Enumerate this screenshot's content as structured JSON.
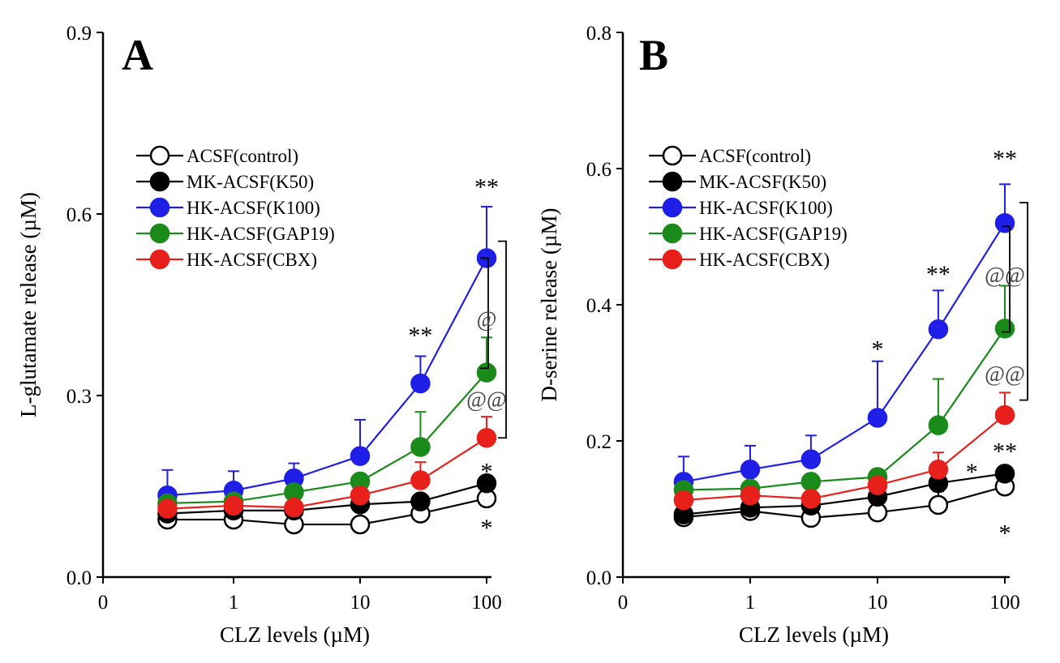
{
  "chart_data": [
    {
      "type": "line",
      "panel": "A",
      "xlabel": "CLZ levels (µM)",
      "ylabel": "L-glutamate release (µM)",
      "x_scale": "log",
      "x_tick_labels": [
        "0",
        "1",
        "10",
        "100"
      ],
      "x": [
        0.3,
        1,
        3,
        10,
        30,
        100
      ],
      "ylim": [
        0,
        0.9
      ],
      "y_ticks": [
        0.0,
        0.3,
        0.6,
        0.9
      ],
      "y_tick_labels": [
        "0.0",
        "0.3",
        "0.6",
        "0.9"
      ],
      "legend": "upper-left",
      "series": [
        {
          "name": "ACSF(control)",
          "color": "#000000",
          "fill": "#ffffff",
          "values": [
            0.095,
            0.095,
            0.087,
            0.087,
            0.105,
            0.13
          ],
          "errors": [
            0.01,
            0.01,
            0.03,
            0.01,
            0.015,
            0.015
          ]
        },
        {
          "name": "MK-ACSF(K50)",
          "color": "#000000",
          "fill": "#000000",
          "values": [
            0.105,
            0.11,
            0.11,
            0.12,
            0.125,
            0.155
          ],
          "errors": [
            0.01,
            0.01,
            0.01,
            0.01,
            0.01,
            0.01
          ]
        },
        {
          "name": "HK-ACSF(K100)",
          "color": "#1f1fe8",
          "fill": "#1f1fe8",
          "values": [
            0.135,
            0.143,
            0.163,
            0.2,
            0.32,
            0.527
          ],
          "errors": [
            0.042,
            0.032,
            0.025,
            0.06,
            0.045,
            0.085
          ]
        },
        {
          "name": "HK-ACSF(GAP19)",
          "color": "#1a8a1a",
          "fill": "#1a8a1a",
          "values": [
            0.122,
            0.125,
            0.14,
            0.158,
            0.215,
            0.338
          ],
          "errors": [
            0.01,
            0.01,
            0.012,
            0.012,
            0.058,
            0.058
          ]
        },
        {
          "name": "HK-ACSF(CBX)",
          "color": "#e8201c",
          "fill": "#e8201c",
          "values": [
            0.113,
            0.118,
            0.115,
            0.135,
            0.16,
            0.23
          ],
          "errors": [
            0.01,
            0.01,
            0.01,
            0.012,
            0.03,
            0.035
          ]
        }
      ],
      "annotations": [
        {
          "text": "**",
          "x": 100,
          "y": 0.645,
          "kind": "star"
        },
        {
          "text": "**",
          "x": 30,
          "y": 0.4,
          "kind": "star"
        },
        {
          "text": "*",
          "x": 100,
          "y": 0.175,
          "kind": "star"
        },
        {
          "text": "*",
          "x": 100,
          "y": 0.082,
          "kind": "star"
        },
        {
          "text": "@",
          "x": 100,
          "y": 0.428,
          "kind": "at"
        },
        {
          "text": "@@",
          "x": 100,
          "y": 0.295,
          "kind": "at"
        }
      ],
      "brackets": [
        [
          0.555,
          0.23
        ],
        [
          0.527,
          0.345
        ]
      ]
    },
    {
      "type": "line",
      "panel": "B",
      "xlabel": "CLZ levels (µM)",
      "ylabel": "D-serine release (µM)",
      "x_scale": "log",
      "x_tick_labels": [
        "0",
        "1",
        "10",
        "100"
      ],
      "x": [
        0.3,
        1,
        3,
        10,
        30,
        100
      ],
      "ylim": [
        0,
        0.8
      ],
      "y_ticks": [
        0.0,
        0.2,
        0.4,
        0.6,
        0.8
      ],
      "y_tick_labels": [
        "0.0",
        "0.2",
        "0.4",
        "0.6",
        "0.8"
      ],
      "legend": "upper-left",
      "series": [
        {
          "name": "ACSF(control)",
          "color": "#000000",
          "fill": "#ffffff",
          "values": [
            0.088,
            0.097,
            0.087,
            0.095,
            0.106,
            0.133
          ],
          "errors": [
            0.01,
            0.018,
            0.033,
            0.018,
            0.02,
            0.012
          ]
        },
        {
          "name": "MK-ACSF(K50)",
          "color": "#000000",
          "fill": "#000000",
          "values": [
            0.092,
            0.102,
            0.105,
            0.118,
            0.138,
            0.152
          ],
          "errors": [
            0.01,
            0.012,
            0.01,
            0.01,
            0.012,
            0.01
          ]
        },
        {
          "name": "HK-ACSF(K100)",
          "color": "#1f1fe8",
          "fill": "#1f1fe8",
          "values": [
            0.14,
            0.158,
            0.173,
            0.234,
            0.364,
            0.52
          ],
          "errors": [
            0.037,
            0.035,
            0.035,
            0.083,
            0.057,
            0.057
          ]
        },
        {
          "name": "HK-ACSF(GAP19)",
          "color": "#1a8a1a",
          "fill": "#1a8a1a",
          "values": [
            0.128,
            0.13,
            0.14,
            0.147,
            0.223,
            0.365
          ],
          "errors": [
            0.01,
            0.01,
            0.01,
            0.01,
            0.068,
            0.063
          ]
        },
        {
          "name": "HK-ACSF(CBX)",
          "color": "#e8201c",
          "fill": "#e8201c",
          "values": [
            0.113,
            0.12,
            0.115,
            0.135,
            0.158,
            0.238
          ],
          "errors": [
            0.01,
            0.01,
            0.01,
            0.012,
            0.025,
            0.033
          ]
        }
      ],
      "annotations": [
        {
          "text": "**",
          "x": 100,
          "y": 0.615,
          "kind": "star"
        },
        {
          "text": "**",
          "x": 30,
          "y": 0.445,
          "kind": "star"
        },
        {
          "text": "*",
          "x": 10,
          "y": 0.335,
          "kind": "star"
        },
        {
          "text": "*",
          "x": 55,
          "y": 0.155,
          "kind": "star"
        },
        {
          "text": "**",
          "x": 100,
          "y": 0.185,
          "kind": "star"
        },
        {
          "text": "*",
          "x": 100,
          "y": 0.065,
          "kind": "star"
        },
        {
          "text": "@@",
          "x": 100,
          "y": 0.445,
          "kind": "at"
        },
        {
          "text": "@@",
          "x": 100,
          "y": 0.3,
          "kind": "at"
        }
      ],
      "brackets": [
        [
          0.55,
          0.26
        ],
        [
          0.515,
          0.36
        ]
      ]
    }
  ]
}
